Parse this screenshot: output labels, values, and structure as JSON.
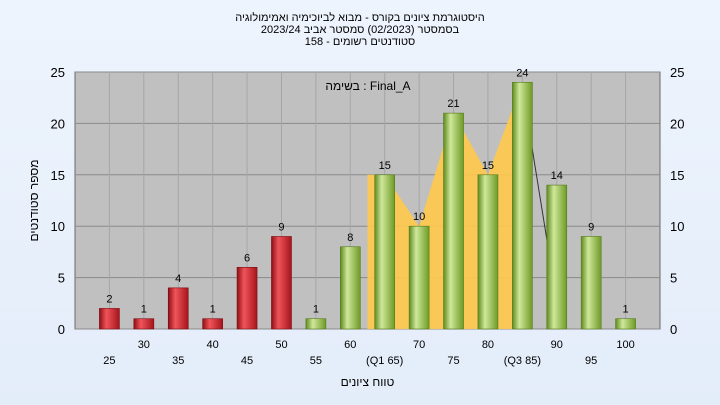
{
  "header": {
    "line1": "היסטוגרמת ציונים בקורס - מבוא לביוכימיה ואמימולוגיה",
    "line2": "בסמסטר  (02/2023)  סמסטר אביב 2023/24",
    "line3": "סטודנטים רשומים - 158"
  },
  "chart_data": {
    "type": "bar",
    "title": "",
    "annotation": "בשימה : Final_A",
    "xlabel": "טווח ציונים",
    "ylabel": "מספר סטודנטים",
    "ylim": [
      0,
      25
    ],
    "yticks": [
      0,
      5,
      10,
      15,
      20,
      25
    ],
    "categories": [
      "25",
      "30",
      "35",
      "40",
      "45",
      "50",
      "55",
      "60",
      "(Q1 65)",
      "70",
      "75",
      "80",
      "(Q3 85)",
      "90",
      "95",
      "100"
    ],
    "values": [
      2,
      1,
      4,
      1,
      6,
      9,
      1,
      8,
      15,
      10,
      21,
      15,
      24,
      14,
      9,
      1
    ],
    "bar_colors": [
      "red",
      "red",
      "red",
      "red",
      "red",
      "red",
      "green",
      "green",
      "green",
      "green",
      "green",
      "green",
      "green",
      "green",
      "green",
      "green"
    ],
    "interquartile_region": {
      "from": "(Q1 65)",
      "to": "(Q3 85)",
      "color": "#ffc94a"
    },
    "colors": {
      "plot_background": "#c0c0c0",
      "failing_bar": "#d8202a",
      "passing_bar": "#8fbc3c",
      "quartile_fill": "#ffc94a"
    },
    "grid": true,
    "legend": "none"
  }
}
